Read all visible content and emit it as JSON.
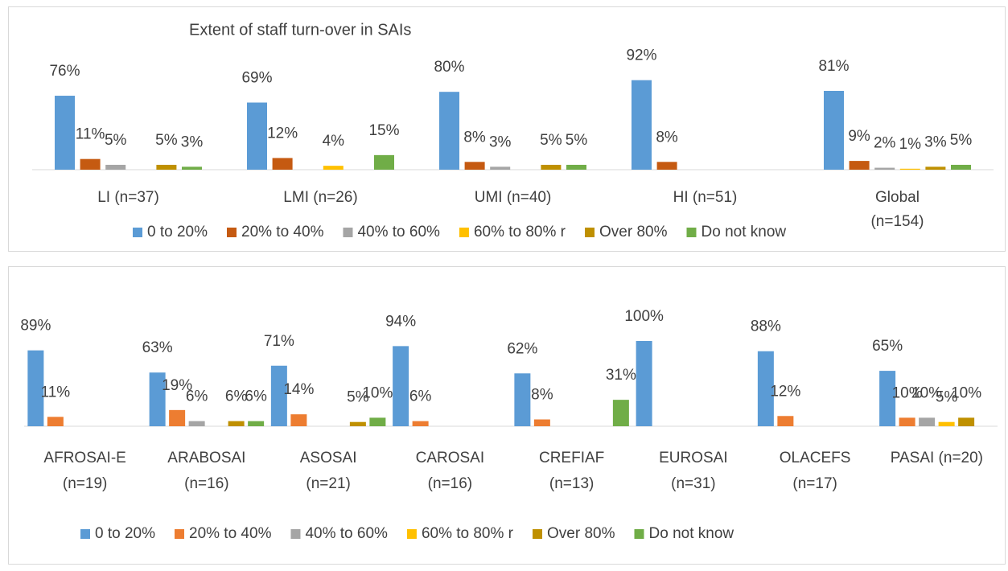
{
  "chart_data": [
    {
      "type": "bar",
      "title": "Extent of staff turn-over in SAIs",
      "categories": [
        "LI (n=37)",
        "LMI (n=26)",
        "UMI (n=40)",
        "HI (n=51)",
        "Global (n=154)"
      ],
      "ylim": [
        0,
        100
      ],
      "series": [
        {
          "name": "0 to 20%",
          "color": "#5b9bd5",
          "values": [
            76,
            69,
            80,
            92,
            81
          ],
          "value_labels": [
            "76%",
            "69%",
            "80%",
            "92%",
            "81%"
          ]
        },
        {
          "name": "20% to 40%",
          "color": "#c55a11",
          "values": [
            11,
            12,
            8,
            8,
            9
          ],
          "value_labels": [
            "11%",
            "12%",
            "8%",
            "8%",
            "9%"
          ]
        },
        {
          "name": "40% to 60%",
          "color": "#a5a5a5",
          "values": [
            5,
            null,
            3,
            null,
            2
          ],
          "value_labels": [
            "5%",
            null,
            "3%",
            null,
            "2%"
          ]
        },
        {
          "name": "60% to 80% r",
          "color": "#ffc000",
          "values": [
            null,
            4,
            null,
            null,
            1
          ],
          "value_labels": [
            null,
            "4%",
            null,
            null,
            "1%"
          ]
        },
        {
          "name": "Over 80%",
          "color": "#bf9000",
          "values": [
            5,
            null,
            5,
            null,
            3
          ],
          "value_labels": [
            "5%",
            null,
            "5%",
            null,
            "3%"
          ]
        },
        {
          "name": "Do not know",
          "color": "#70ad47",
          "values": [
            3,
            15,
            5,
            null,
            5
          ],
          "value_labels": [
            "3%",
            "15%",
            "5%",
            null,
            "5%"
          ]
        }
      ]
    },
    {
      "type": "bar",
      "categories": [
        "AFROSAI-E (n=19)",
        "ARABOSAI (n=16)",
        "ASOSAI (n=21)",
        "CAROSAI (n=16)",
        "CREFIAF (n=13)",
        "EUROSAI (n=31)",
        "OLACEFS (n=17)",
        "PASAI (n=20)"
      ],
      "ylim": [
        0,
        100
      ],
      "series": [
        {
          "name": "0 to 20%",
          "color": "#5b9bd5",
          "values": [
            89,
            63,
            71,
            94,
            62,
            100,
            88,
            65
          ],
          "value_labels": [
            "89%",
            "63%",
            "71%",
            "94%",
            "62%",
            "100%",
            "88%",
            "65%"
          ]
        },
        {
          "name": "20% to 40%",
          "color": "#ed7d31",
          "values": [
            11,
            19,
            14,
            6,
            8,
            null,
            12,
            10
          ],
          "value_labels": [
            "11%",
            "19%",
            "14%",
            "6%",
            "8%",
            null,
            "12%",
            "10%"
          ]
        },
        {
          "name": "40% to 60%",
          "color": "#a5a5a5",
          "values": [
            null,
            6,
            null,
            null,
            null,
            null,
            null,
            10
          ],
          "value_labels": [
            null,
            "6%",
            null,
            null,
            null,
            null,
            null,
            "10%"
          ]
        },
        {
          "name": "60% to 80% r",
          "color": "#ffc000",
          "values": [
            null,
            null,
            null,
            null,
            null,
            null,
            null,
            5
          ],
          "value_labels": [
            null,
            null,
            null,
            null,
            null,
            null,
            null,
            "5%"
          ]
        },
        {
          "name": "Over 80%",
          "color": "#bf9000",
          "values": [
            null,
            6,
            5,
            null,
            null,
            null,
            null,
            10
          ],
          "value_labels": [
            null,
            "6%",
            "5%",
            null,
            null,
            null,
            null,
            "10%"
          ]
        },
        {
          "name": "Do not know",
          "color": "#70ad47",
          "values": [
            null,
            6,
            10,
            null,
            31,
            null,
            null,
            null
          ],
          "value_labels": [
            null,
            "6%",
            "10%",
            null,
            "31%",
            null,
            null,
            null
          ]
        }
      ]
    }
  ]
}
